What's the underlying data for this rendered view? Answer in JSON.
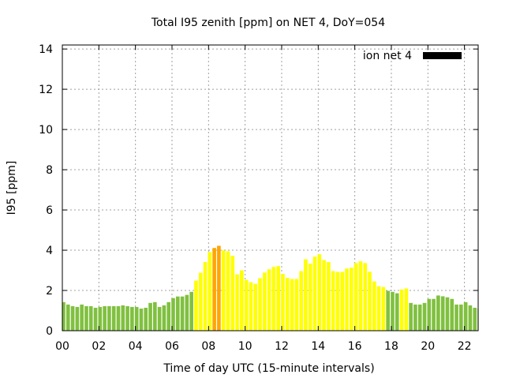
{
  "chart_data": {
    "type": "bar",
    "title": "Total I95 zenith [ppm] on NET 4, DoY=054",
    "xlabel": "Time of day UTC (15-minute intervals)",
    "ylabel": "I95 [ppm]",
    "xlim": [
      0,
      22.75
    ],
    "ylim": [
      0,
      14.2
    ],
    "xticks": [
      "00",
      "02",
      "04",
      "06",
      "08",
      "10",
      "12",
      "14",
      "16",
      "18",
      "20",
      "22"
    ],
    "yticks": [
      "0",
      "2",
      "4",
      "6",
      "8",
      "10",
      "12",
      "14"
    ],
    "grid": true,
    "legend": {
      "position": "top-right",
      "label": "ion net 4"
    },
    "bar_interval_hours": 0.25,
    "color_thresholds": {
      "green_below": 2,
      "orange_from": 4
    },
    "colors": {
      "green": "#80c040",
      "yellow": "#ffff00",
      "orange": "#ffa500",
      "legend": "#000000"
    },
    "values": [
      1.42,
      1.3,
      1.22,
      1.18,
      1.3,
      1.22,
      1.22,
      1.14,
      1.18,
      1.22,
      1.22,
      1.22,
      1.22,
      1.26,
      1.22,
      1.18,
      1.18,
      1.1,
      1.14,
      1.38,
      1.42,
      1.18,
      1.26,
      1.42,
      1.62,
      1.7,
      1.7,
      1.78,
      1.93,
      2.49,
      2.88,
      3.41,
      3.91,
      4.11,
      4.22,
      3.99,
      3.95,
      3.72,
      2.8,
      3.0,
      2.53,
      2.41,
      2.33,
      2.61,
      2.89,
      3.05,
      3.17,
      3.21,
      2.82,
      2.62,
      2.57,
      2.57,
      2.96,
      3.55,
      3.33,
      3.68,
      3.8,
      3.51,
      3.41,
      2.96,
      2.92,
      2.92,
      3.09,
      3.13,
      3.36,
      3.45,
      3.36,
      2.93,
      2.45,
      2.21,
      2.17,
      1.98,
      1.93,
      1.86,
      2.05,
      2.1,
      1.38,
      1.3,
      1.3,
      1.38,
      1.58,
      1.58,
      1.75,
      1.71,
      1.66,
      1.58,
      1.3,
      1.3,
      1.42,
      1.26,
      1.14,
      1.1
    ]
  }
}
